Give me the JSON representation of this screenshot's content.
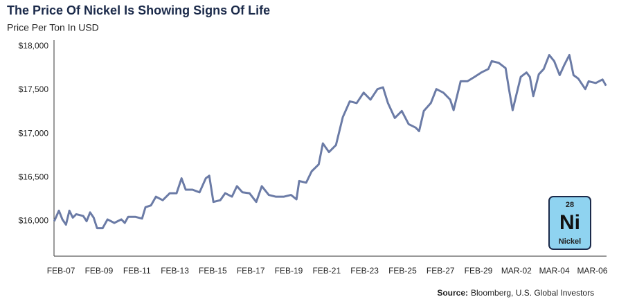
{
  "chart_data": {
    "type": "line",
    "title": "The Price Of Nickel Is Showing Signs Of Life",
    "subtitle": "Price Per Ton In USD",
    "source_label": "Source:",
    "source": "Bloomberg, U.S. Global Investors",
    "badge": {
      "number": 28,
      "symbol": "Ni",
      "name": "Nickel"
    },
    "color": "#6b7ba6",
    "grid": false,
    "x": [
      -0.36,
      -0.11,
      0.07,
      0.26,
      0.44,
      0.62,
      0.8,
      1.17,
      1.35,
      1.53,
      1.72,
      1.9,
      2.19,
      2.45,
      2.81,
      3.18,
      3.36,
      3.54,
      3.91,
      4.27,
      4.45,
      4.74,
      5.0,
      5.36,
      5.73,
      6.09,
      6.35,
      6.57,
      6.93,
      7.3,
      7.63,
      7.81,
      8.03,
      8.39,
      8.65,
      9.01,
      9.27,
      9.56,
      9.93,
      10.29,
      10.58,
      10.95,
      11.31,
      11.75,
      12.12,
      12.41,
      12.55,
      12.92,
      13.21,
      13.58,
      13.8,
      14.12,
      14.49,
      14.85,
      15.22,
      15.58,
      15.95,
      16.31,
      16.68,
      16.97,
      17.23,
      17.59,
      17.96,
      18.32,
      18.69,
      18.87,
      19.12,
      19.49,
      19.78,
      20.15,
      20.51,
      20.69,
      21.06,
      21.42,
      21.79,
      22.15,
      22.52,
      22.7,
      23.07,
      23.43,
      23.61,
      23.8,
      23.98,
      24.23,
      24.53,
      24.71,
      24.89,
      25.18,
      25.44,
      25.73,
      25.99,
      26.28,
      26.53,
      26.79,
      27.01,
      27.26,
      27.63,
      27.81,
      28.18,
      28.54,
      28.72
    ],
    "values": [
      16000,
      16120,
      16020,
      15960,
      16120,
      16040,
      16080,
      16060,
      16000,
      16100,
      16040,
      15920,
      15920,
      16020,
      15980,
      16020,
      15980,
      16050,
      16050,
      16030,
      16160,
      16180,
      16280,
      16240,
      16320,
      16320,
      16490,
      16360,
      16360,
      16330,
      16490,
      16520,
      16220,
      16240,
      16320,
      16280,
      16400,
      16330,
      16320,
      16220,
      16400,
      16300,
      16280,
      16280,
      16300,
      16250,
      16460,
      16440,
      16570,
      16650,
      16890,
      16790,
      16870,
      17190,
      17370,
      17350,
      17470,
      17390,
      17510,
      17530,
      17350,
      17180,
      17260,
      17110,
      17070,
      17030,
      17260,
      17350,
      17510,
      17470,
      17390,
      17270,
      17600,
      17600,
      17650,
      17700,
      17740,
      17830,
      17810,
      17750,
      17510,
      17270,
      17430,
      17650,
      17700,
      17650,
      17430,
      17680,
      17740,
      17900,
      17830,
      17670,
      17790,
      17900,
      17670,
      17630,
      17510,
      17600,
      17580,
      17620,
      17550
    ],
    "xlim": [
      -0.37,
      28.75
    ],
    "xticks": [
      {
        "value": 0,
        "label": "FEB-07"
      },
      {
        "value": 2,
        "label": "FEB-09"
      },
      {
        "value": 4,
        "label": "FEB-11"
      },
      {
        "value": 6,
        "label": "FEB-13"
      },
      {
        "value": 8,
        "label": "FEB-15"
      },
      {
        "value": 10,
        "label": "FEB-17"
      },
      {
        "value": 12,
        "label": "FEB-19"
      },
      {
        "value": 14,
        "label": "FEB-21"
      },
      {
        "value": 16,
        "label": "FEB-23"
      },
      {
        "value": 18,
        "label": "FEB-25"
      },
      {
        "value": 20,
        "label": "FEB-27"
      },
      {
        "value": 22,
        "label": "FEB-29"
      },
      {
        "value": 24,
        "label": "MAR-02"
      },
      {
        "value": 26,
        "label": "MAR-04"
      },
      {
        "value": 28,
        "label": "MAR-06"
      }
    ],
    "ylim": [
      15600,
      18070
    ],
    "yticks": [
      {
        "value": 16000,
        "label": "$16,000"
      },
      {
        "value": 16500,
        "label": "$16,500"
      },
      {
        "value": 17000,
        "label": "$17,000"
      },
      {
        "value": 17500,
        "label": "$17,500"
      },
      {
        "value": 18000,
        "label": "$18,000"
      }
    ]
  }
}
